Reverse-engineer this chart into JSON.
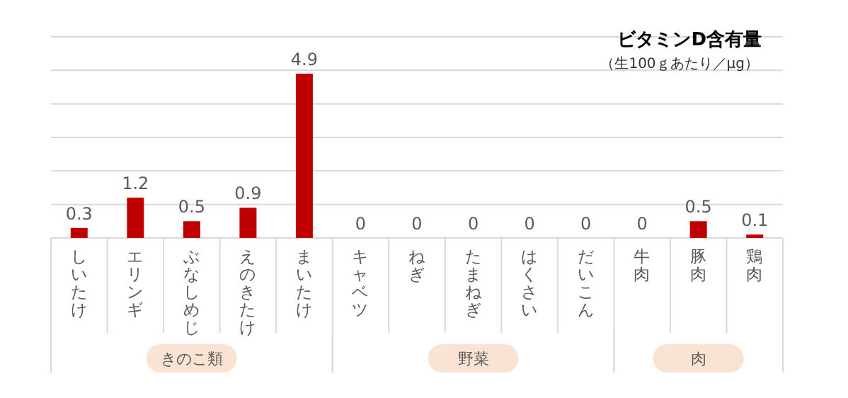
{
  "chart_data": {
    "type": "bar",
    "title": "ビタミンD含有量",
    "subtitle": "（生100ｇあたり／μg）",
    "categories": [
      "しいたけ",
      "エリンギ",
      "ぶなしめじ",
      "えのきたけ",
      "まいたけ",
      "キャベツ",
      "ねぎ",
      "たまねぎ",
      "はくさい",
      "だいこん",
      "牛肉",
      "豚肉",
      "鶏肉"
    ],
    "values": [
      0.3,
      1.2,
      0.5,
      0.9,
      4.9,
      0,
      0,
      0,
      0,
      0,
      0,
      0.5,
      0.1
    ],
    "color": "#c00000",
    "data_labels": true,
    "grid": "y",
    "tick_labels": "x",
    "ylim": [
      0,
      6
    ],
    "yticks": [
      {
        "value": 0,
        "label": null
      },
      {
        "value": 1,
        "label": null
      },
      {
        "value": 2,
        "label": null
      },
      {
        "value": 3,
        "label": null
      },
      {
        "value": 4,
        "label": null
      },
      {
        "value": 5,
        "label": null
      },
      {
        "value": 6,
        "label": null
      }
    ],
    "annotations": [
      "きのこ類",
      "野菜",
      "肉"
    ]
  }
}
